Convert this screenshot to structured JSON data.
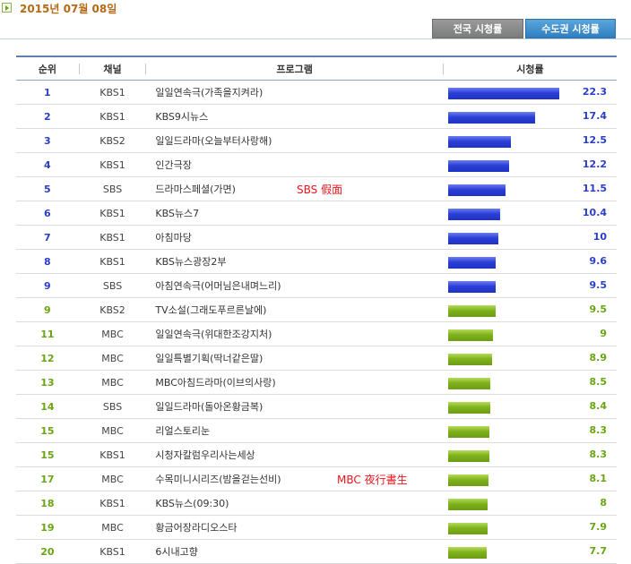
{
  "header": {
    "date": "2015년 07월 08일"
  },
  "tabs": [
    {
      "label": "전국 시청률",
      "active": false
    },
    {
      "label": "수도권 시청률",
      "active": true
    }
  ],
  "table": {
    "columns": [
      "순위",
      "채널",
      "프로그램",
      "시청률"
    ],
    "rows": [
      {
        "rank": "1",
        "channel": "KBS1",
        "program": "일일연속극(가족을지켜라)",
        "rating": 22.3,
        "rating_label": "22.3",
        "color": "blue"
      },
      {
        "rank": "2",
        "channel": "KBS1",
        "program": "KBS9시뉴스",
        "rating": 17.4,
        "rating_label": "17.4",
        "color": "blue"
      },
      {
        "rank": "3",
        "channel": "KBS2",
        "program": "일일드라마(오늘부터사랑해)",
        "rating": 12.5,
        "rating_label": "12.5",
        "color": "blue"
      },
      {
        "rank": "4",
        "channel": "KBS1",
        "program": "인간극장",
        "rating": 12.2,
        "rating_label": "12.2",
        "color": "blue"
      },
      {
        "rank": "5",
        "channel": "SBS",
        "program": "드라마스페셜(가면)",
        "rating": 11.5,
        "rating_label": "11.5",
        "color": "blue",
        "note": "SBS 假面"
      },
      {
        "rank": "6",
        "channel": "KBS1",
        "program": "KBS뉴스7",
        "rating": 10.4,
        "rating_label": "10.4",
        "color": "blue"
      },
      {
        "rank": "7",
        "channel": "KBS1",
        "program": "아침마당",
        "rating": 10,
        "rating_label": "10",
        "color": "blue"
      },
      {
        "rank": "8",
        "channel": "KBS1",
        "program": "KBS뉴스광장2부",
        "rating": 9.6,
        "rating_label": "9.6",
        "color": "blue"
      },
      {
        "rank": "9",
        "channel": "SBS",
        "program": "아침연속극(어머님은내며느리)",
        "rating": 9.5,
        "rating_label": "9.5",
        "color": "blue"
      },
      {
        "rank": "9",
        "channel": "KBS2",
        "program": "TV소설(그래도푸르른날에)",
        "rating": 9.5,
        "rating_label": "9.5",
        "color": "green"
      },
      {
        "rank": "11",
        "channel": "MBC",
        "program": "일일연속극(위대한조강지처)",
        "rating": 9,
        "rating_label": "9",
        "color": "green"
      },
      {
        "rank": "12",
        "channel": "MBC",
        "program": "일일특별기획(딱너같은딸)",
        "rating": 8.9,
        "rating_label": "8.9",
        "color": "green"
      },
      {
        "rank": "13",
        "channel": "MBC",
        "program": "MBC아침드라마(이브의사랑)",
        "rating": 8.5,
        "rating_label": "8.5",
        "color": "green"
      },
      {
        "rank": "14",
        "channel": "SBS",
        "program": "일일드라마(돌아온황금복)",
        "rating": 8.4,
        "rating_label": "8.4",
        "color": "green"
      },
      {
        "rank": "15",
        "channel": "MBC",
        "program": "리얼스토리눈",
        "rating": 8.3,
        "rating_label": "8.3",
        "color": "green"
      },
      {
        "rank": "15",
        "channel": "KBS1",
        "program": "시청자칼럼우리사는세상",
        "rating": 8.3,
        "rating_label": "8.3",
        "color": "green"
      },
      {
        "rank": "17",
        "channel": "MBC",
        "program": "수목미니시리즈(밤을걷는선비)",
        "rating": 8.1,
        "rating_label": "8.1",
        "color": "green",
        "note": "MBC 夜行書生"
      },
      {
        "rank": "18",
        "channel": "KBS1",
        "program": "KBS뉴스(09:30)",
        "rating": 8,
        "rating_label": "8",
        "color": "green"
      },
      {
        "rank": "19",
        "channel": "MBC",
        "program": "황금어장라디오스타",
        "rating": 7.9,
        "rating_label": "7.9",
        "color": "green"
      },
      {
        "rank": "20",
        "channel": "KBS1",
        "program": "6시내고향",
        "rating": 7.7,
        "rating_label": "7.7",
        "color": "green"
      }
    ]
  },
  "colors": {
    "blue_bar": "#2c3fd6",
    "green_bar": "#7fb21c",
    "date": "#b46a16",
    "note": "#e8151b"
  }
}
